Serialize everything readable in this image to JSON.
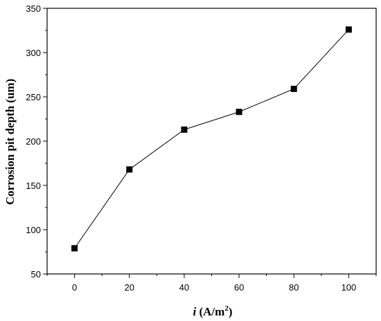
{
  "chart_data": {
    "type": "line",
    "x": [
      0,
      20,
      40,
      60,
      80,
      100
    ],
    "series": [
      {
        "values": [
          79,
          168,
          213,
          233,
          259,
          326
        ]
      }
    ],
    "xlabel_italic": "i",
    "xlabel_rest": " (A/m",
    "xlabel_sup": "2",
    "xlabel_close": ")",
    "ylabel": "Corrosion pit depth (um)",
    "xlim": [
      -10,
      110
    ],
    "ylim": [
      50,
      350
    ],
    "xticks": [
      0,
      20,
      40,
      60,
      80,
      100
    ],
    "yticks": [
      50,
      100,
      150,
      200,
      250,
      300,
      350
    ],
    "marker": "square",
    "line_color": "#000000",
    "grid": false
  }
}
